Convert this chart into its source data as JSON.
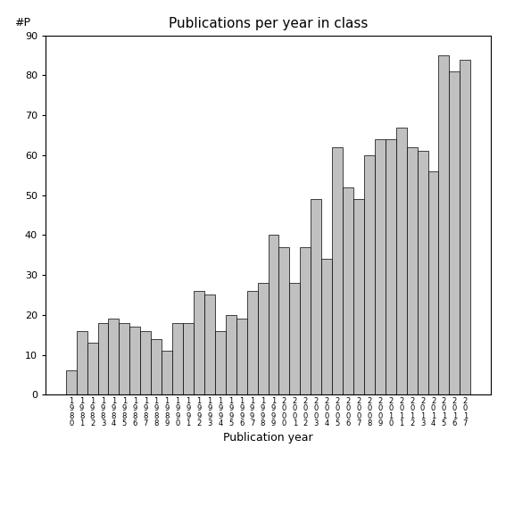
{
  "title": "Publications per year in class",
  "xlabel": "Publication year",
  "ylabel": "#P",
  "years": [
    1980,
    1981,
    1982,
    1983,
    1984,
    1985,
    1986,
    1987,
    1988,
    1989,
    1990,
    1991,
    1992,
    1993,
    1994,
    1995,
    1996,
    1997,
    1998,
    1999,
    2000,
    2001,
    2002,
    2003,
    2004,
    2005,
    2006,
    2007,
    2008,
    2009,
    2010,
    2011,
    2012,
    2013,
    2014,
    2015,
    2016,
    2017
  ],
  "values": [
    6,
    16,
    13,
    18,
    19,
    18,
    17,
    16,
    14,
    11,
    18,
    18,
    26,
    25,
    16,
    20,
    19,
    26,
    28,
    40,
    37,
    28,
    37,
    49,
    34,
    62,
    52,
    49,
    60,
    64,
    64,
    67,
    62,
    61,
    56,
    85,
    81,
    84
  ],
  "bar_color": "#c0c0c0",
  "bar_edgecolor": "#000000",
  "ylim": [
    0,
    90
  ],
  "yticks": [
    0,
    10,
    20,
    30,
    40,
    50,
    60,
    70,
    80,
    90
  ],
  "background_color": "#ffffff",
  "title_fontsize": 11,
  "xlabel_fontsize": 9,
  "ylabel_fontsize": 9,
  "tick_fontsize": 8,
  "xtick_fontsize": 6
}
